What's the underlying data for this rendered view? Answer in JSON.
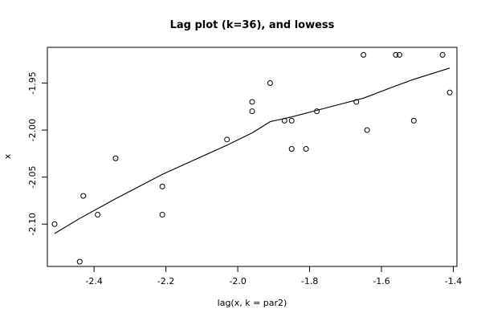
{
  "chart_data": {
    "type": "scatter",
    "title": "Lag plot (k=36), and lowess",
    "xlabel": "lag(x, k = par2)",
    "ylabel": "x",
    "xlim": [
      -2.53,
      -1.39
    ],
    "ylim": [
      -2.145,
      -1.912
    ],
    "x_ticks": [
      {
        "value": -2.4,
        "label": "-2.4"
      },
      {
        "value": -2.2,
        "label": "-2.2"
      },
      {
        "value": -2.0,
        "label": "-2.0"
      },
      {
        "value": -1.8,
        "label": "-1.8"
      },
      {
        "value": -1.6,
        "label": "-1.6"
      },
      {
        "value": -1.4,
        "label": "-1.4"
      }
    ],
    "y_ticks": [
      {
        "value": -2.1,
        "label": "-2.10"
      },
      {
        "value": -2.05,
        "label": "-2.05"
      },
      {
        "value": -2.0,
        "label": "-2.00"
      },
      {
        "value": -1.95,
        "label": "-1.95"
      }
    ],
    "points": [
      {
        "x": -2.51,
        "y": -2.1
      },
      {
        "x": -2.44,
        "y": -2.14
      },
      {
        "x": -2.43,
        "y": -2.07
      },
      {
        "x": -2.39,
        "y": -2.09
      },
      {
        "x": -2.34,
        "y": -2.03
      },
      {
        "x": -2.21,
        "y": -2.06
      },
      {
        "x": -2.21,
        "y": -2.09
      },
      {
        "x": -2.03,
        "y": -2.01
      },
      {
        "x": -1.96,
        "y": -1.97
      },
      {
        "x": -1.96,
        "y": -1.98
      },
      {
        "x": -1.91,
        "y": -1.95
      },
      {
        "x": -1.87,
        "y": -1.99
      },
      {
        "x": -1.85,
        "y": -1.99
      },
      {
        "x": -1.85,
        "y": -2.02
      },
      {
        "x": -1.81,
        "y": -2.02
      },
      {
        "x": -1.78,
        "y": -1.98
      },
      {
        "x": -1.67,
        "y": -1.97
      },
      {
        "x": -1.65,
        "y": -1.92
      },
      {
        "x": -1.64,
        "y": -2.0
      },
      {
        "x": -1.56,
        "y": -1.92
      },
      {
        "x": -1.55,
        "y": -1.92
      },
      {
        "x": -1.51,
        "y": -1.99
      },
      {
        "x": -1.43,
        "y": -1.92
      },
      {
        "x": -1.41,
        "y": -1.96
      }
    ],
    "lowess": [
      {
        "x": -2.51,
        "y": -2.11
      },
      {
        "x": -2.44,
        "y": -2.094
      },
      {
        "x": -2.34,
        "y": -2.073
      },
      {
        "x": -2.21,
        "y": -2.047
      },
      {
        "x": -2.03,
        "y": -2.016
      },
      {
        "x": -1.96,
        "y": -2.003
      },
      {
        "x": -1.91,
        "y": -1.991
      },
      {
        "x": -1.85,
        "y": -1.986
      },
      {
        "x": -1.78,
        "y": -1.979
      },
      {
        "x": -1.65,
        "y": -1.966
      },
      {
        "x": -1.56,
        "y": -1.953
      },
      {
        "x": -1.51,
        "y": -1.946
      },
      {
        "x": -1.41,
        "y": -1.934
      }
    ],
    "grid": false
  }
}
